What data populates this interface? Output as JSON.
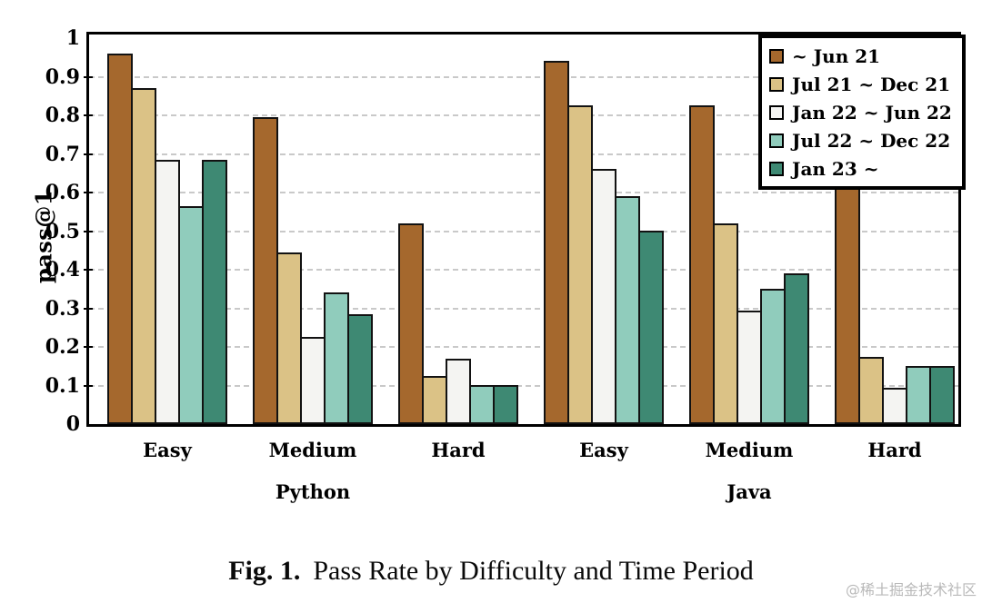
{
  "figure": {
    "caption_prefix": "Fig. 1.",
    "caption_text": "Pass Rate by Difficulty and Time Period",
    "watermark": "@稀土掘金技术社区"
  },
  "chart_data": {
    "type": "bar",
    "title": "Fig. 1. Pass Rate by Difficulty and Time Period",
    "ylabel": "pass@1",
    "xlabel": "",
    "ylim": [
      0,
      1
    ],
    "yticks": [
      0,
      0.1,
      0.2,
      0.3,
      0.4,
      0.5,
      0.6,
      0.7,
      0.8,
      0.9,
      1
    ],
    "grid": "horizontal-dashed",
    "grid_color": "#c9c9c9",
    "frame_color": "#000000",
    "legend_position": "top-right",
    "categories": [
      "Easy",
      "Medium",
      "Hard",
      "Easy",
      "Medium",
      "Hard"
    ],
    "group_labels": [
      "Python",
      "Java"
    ],
    "series": [
      {
        "name": "~ Jun 21",
        "color": "#A5682D",
        "values": [
          0.96,
          0.795,
          0.52,
          0.94,
          0.825,
          0.62
        ]
      },
      {
        "name": "Jul 21 ~ Dec 21",
        "color": "#DBC286",
        "values": [
          0.87,
          0.445,
          0.125,
          0.825,
          0.52,
          0.175
        ]
      },
      {
        "name": "Jan 22 ~ Jun 22",
        "color": "#F4F4F2",
        "values": [
          0.685,
          0.225,
          0.17,
          0.66,
          0.295,
          0.095
        ]
      },
      {
        "name": "Jul 22 ~ Dec 22",
        "color": "#90CCBC",
        "values": [
          0.565,
          0.34,
          0.1,
          0.59,
          0.35,
          0.15
        ]
      },
      {
        "name": "Jan 23 ~",
        "color": "#3E8973",
        "values": [
          0.685,
          0.285,
          0.1,
          0.5,
          0.39,
          0.15
        ]
      }
    ]
  }
}
